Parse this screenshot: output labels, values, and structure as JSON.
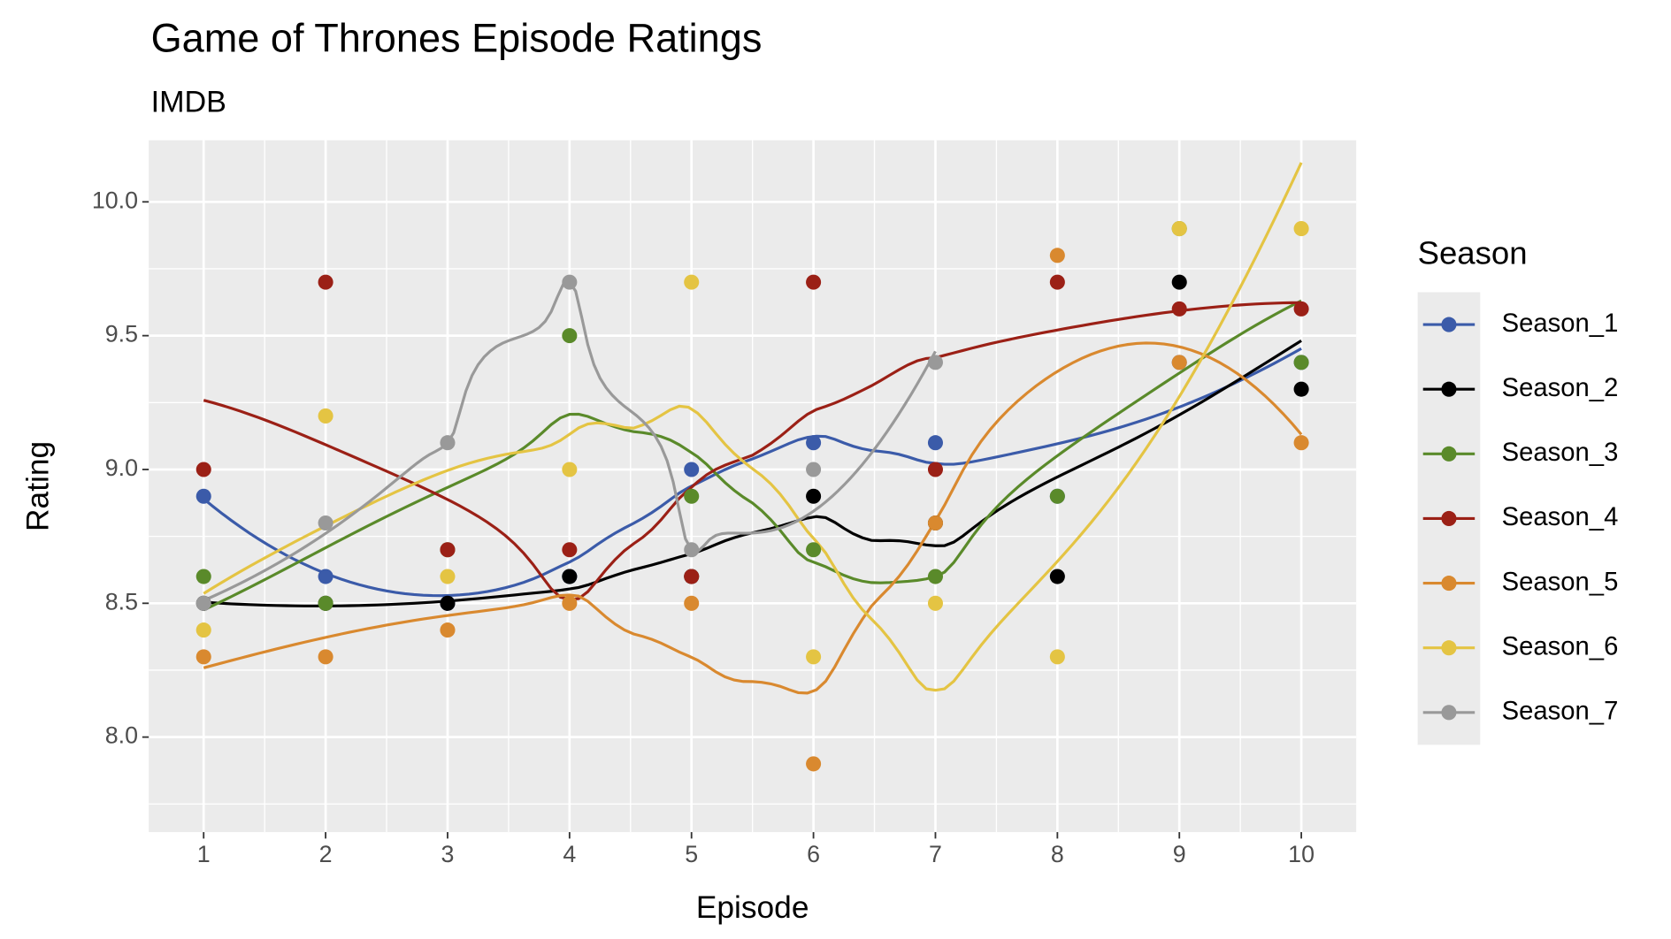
{
  "chart_data": {
    "type": "line",
    "title": "Game of Thrones Episode Ratings",
    "subtitle": "IMDB",
    "x_label": "Episode",
    "y_label": "Rating",
    "legend_title": "Season",
    "legend_position": "right",
    "grid": true,
    "smooth": "loess",
    "x": [
      1,
      2,
      3,
      4,
      5,
      6,
      7,
      8,
      9,
      10
    ],
    "xlim": [
      0.55,
      10.45
    ],
    "xticks": [
      1,
      2,
      3,
      4,
      5,
      6,
      7,
      8,
      9,
      10
    ],
    "ylim": [
      7.645,
      10.23
    ],
    "yticks": [
      {
        "value": 8,
        "label": "8.0"
      },
      8.5,
      {
        "value": 9,
        "label": "9.0"
      },
      9.5,
      {
        "value": 10,
        "label": "10.0"
      }
    ],
    "series": [
      {
        "name": "Season_1",
        "color": "#3b5ba9",
        "values": [
          8.9,
          8.6,
          8.5,
          8.6,
          9.0,
          9.1,
          9.1,
          8.9,
          9.4,
          9.4
        ]
      },
      {
        "name": "Season_2",
        "color": "#000000",
        "values": [
          8.5,
          8.5,
          8.5,
          8.6,
          8.6,
          8.9,
          8.8,
          8.6,
          9.7,
          9.3
        ]
      },
      {
        "name": "Season_3",
        "color": "#5a8a2a",
        "values": [
          8.6,
          8.5,
          8.7,
          9.5,
          8.9,
          8.7,
          8.6,
          8.9,
          9.9,
          9.4
        ]
      },
      {
        "name": "Season_4",
        "color": "#9b2016",
        "values": [
          9.0,
          9.7,
          8.7,
          8.7,
          8.6,
          9.7,
          9.0,
          9.7,
          9.6,
          9.6
        ]
      },
      {
        "name": "Season_5",
        "color": "#d9892f",
        "values": [
          8.3,
          8.3,
          8.4,
          8.5,
          8.5,
          7.9,
          8.8,
          9.8,
          9.4,
          9.1
        ]
      },
      {
        "name": "Season_6",
        "color": "#e4c443",
        "values": [
          8.4,
          9.2,
          8.6,
          9.0,
          9.7,
          8.3,
          8.5,
          8.3,
          9.9,
          9.9
        ]
      },
      {
        "name": "Season_7",
        "color": "#999999",
        "values": [
          8.5,
          8.8,
          9.1,
          9.7,
          8.7,
          9.0,
          9.4,
          null,
          null,
          null
        ]
      }
    ]
  }
}
